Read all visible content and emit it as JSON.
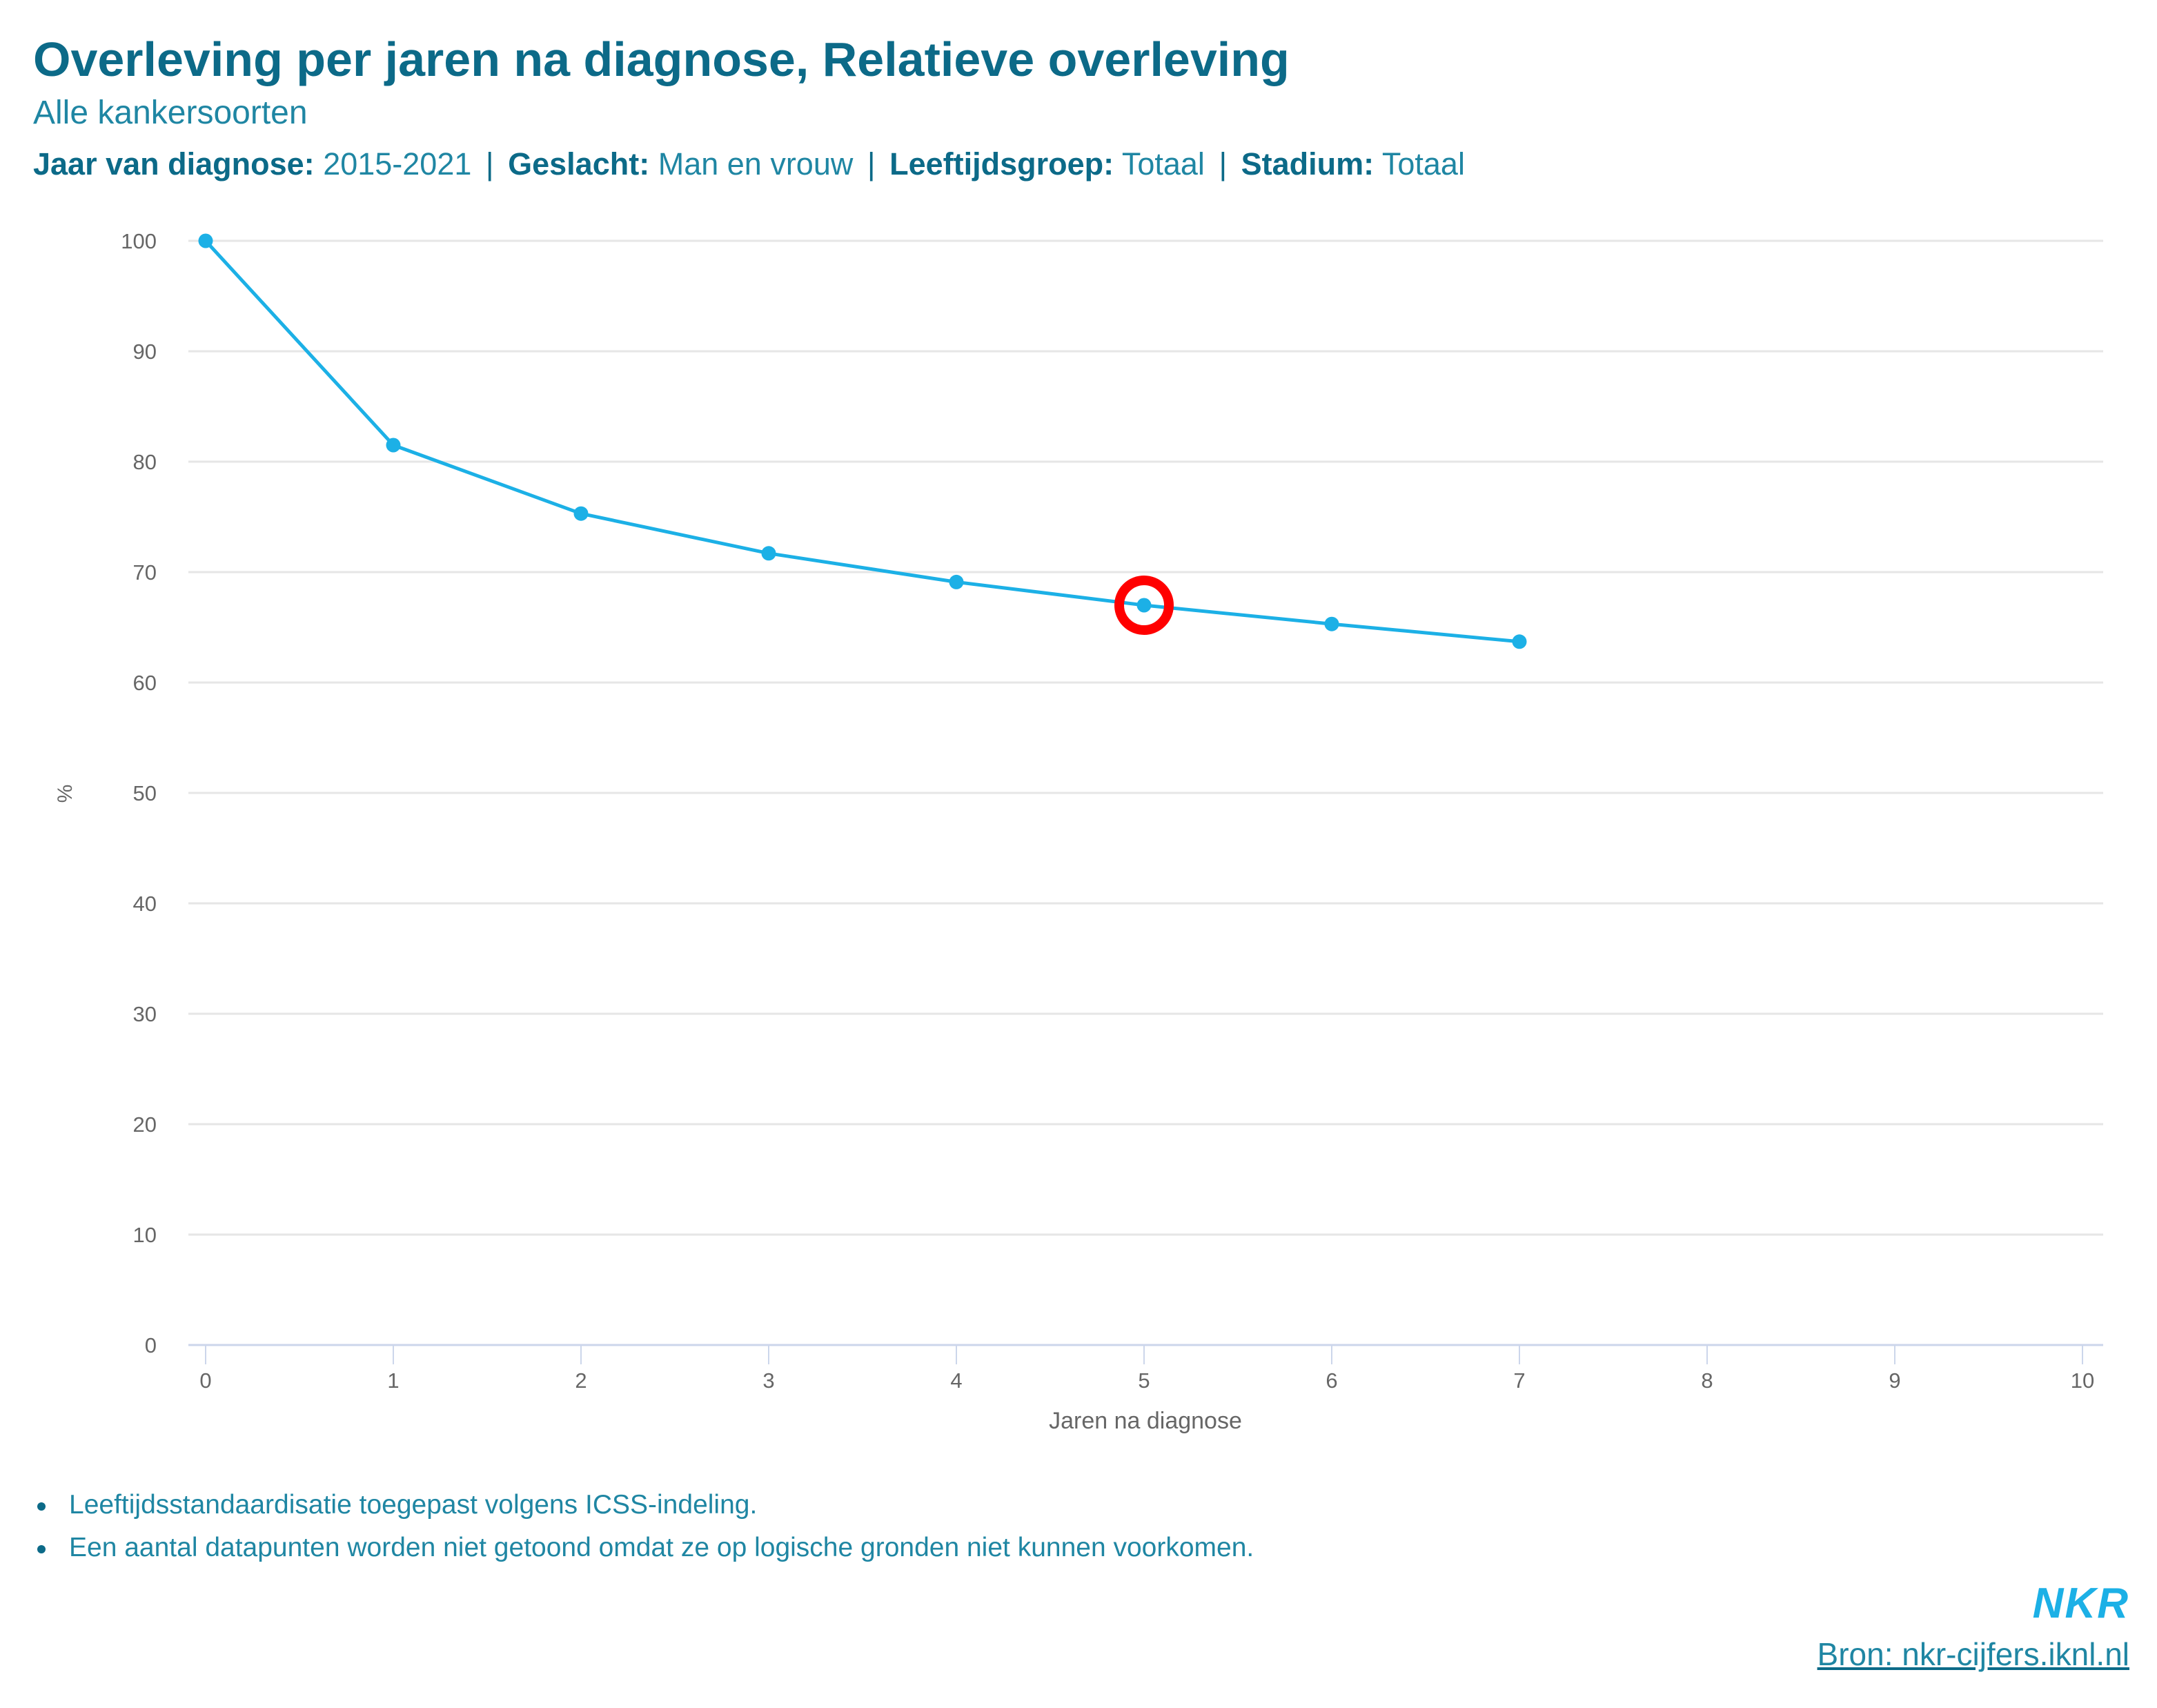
{
  "header": {
    "title": "Overleving per jaren na diagnose, Relatieve overleving",
    "subtitle": "Alle kankersoorten",
    "filters": [
      {
        "label": "Jaar van diagnose:",
        "value": "2015-2021"
      },
      {
        "label": "Geslacht:",
        "value": "Man en vrouw"
      },
      {
        "label": "Leeftijdsgroep:",
        "value": "Totaal"
      },
      {
        "label": "Stadium:",
        "value": "Totaal"
      }
    ],
    "separator": "|"
  },
  "chart_data": {
    "type": "line",
    "title": "Overleving per jaren na diagnose, Relatieve overleving",
    "subtitle": "Alle kankersoorten",
    "xlabel": "Jaren na diagnose",
    "ylabel": "%",
    "xlim": [
      0,
      10
    ],
    "ylim": [
      0,
      100
    ],
    "x_ticks": [
      0,
      1,
      2,
      3,
      4,
      5,
      6,
      7,
      8,
      9,
      10
    ],
    "y_ticks": [
      0,
      10,
      20,
      30,
      40,
      50,
      60,
      70,
      80,
      90,
      100
    ],
    "grid": "horizontal",
    "legend": "none",
    "series": [
      {
        "name": "Relatieve overleving",
        "color": "#1cb0e6",
        "x": [
          0,
          1,
          2,
          3,
          4,
          5,
          6,
          7
        ],
        "values": [
          100,
          81.5,
          75.3,
          71.7,
          69.1,
          67.0,
          65.3,
          63.7
        ]
      }
    ],
    "annotations": [
      {
        "type": "highlight-circle",
        "x": 5,
        "y": 67.0,
        "color": "#ff0000"
      }
    ]
  },
  "footer": {
    "notes": [
      "Leeftijdsstandaardisatie toegepast volgens ICSS-indeling.",
      "Een aantal datapunten worden niet getoond omdat ze op logische gronden niet kunnen voorkomen."
    ],
    "logo": "NKR",
    "source_link": "Bron: nkr-cijfers.iknl.nl"
  }
}
